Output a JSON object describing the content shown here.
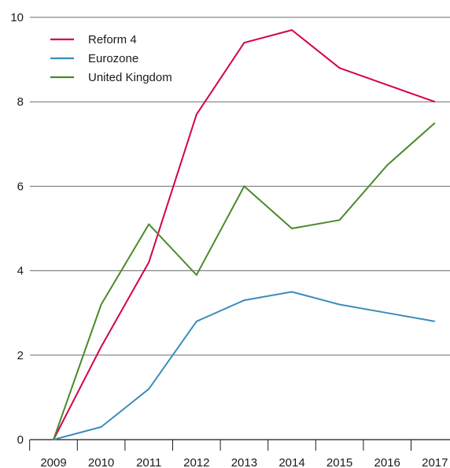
{
  "chart_data": {
    "type": "line",
    "title": "",
    "xlabel": "",
    "ylabel": "",
    "categories": [
      "2009",
      "2010",
      "2011",
      "2012",
      "2013",
      "2014",
      "2015",
      "2016",
      "2017"
    ],
    "ylim": [
      0,
      10
    ],
    "yticks": [
      "0",
      "2",
      "4",
      "6",
      "8",
      "10"
    ],
    "grid": "horizontal",
    "legend_position": "top-left",
    "series": [
      {
        "name": "Reform 4",
        "color": "#d4004f",
        "values": [
          0,
          2.2,
          4.2,
          7.7,
          9.4,
          9.7,
          8.8,
          8.4,
          8.0
        ]
      },
      {
        "name": "Eurozone",
        "color": "#3a8dbb",
        "values": [
          0,
          0.3,
          1.2,
          2.8,
          3.3,
          3.5,
          3.2,
          3.0,
          2.8
        ]
      },
      {
        "name": "United Kingdom",
        "color": "#4a8a2a",
        "values": [
          0,
          3.2,
          5.1,
          3.9,
          6.0,
          5.0,
          5.2,
          6.5,
          7.5
        ]
      }
    ]
  }
}
